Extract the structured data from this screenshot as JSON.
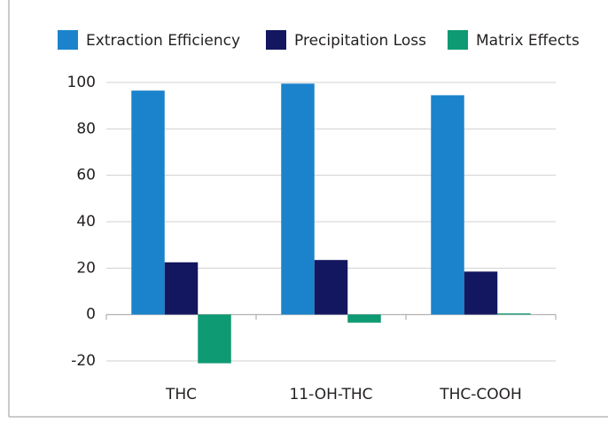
{
  "chart_data": {
    "type": "bar",
    "categories": [
      "THC",
      "11-OH-THC",
      "THC-COOH"
    ],
    "series": [
      {
        "name": "Extraction Efficiency",
        "color": "#1b83cb",
        "values": [
          96.5,
          99.5,
          94.5
        ]
      },
      {
        "name": "Precipitation Loss",
        "color": "#13175f",
        "values": [
          22.5,
          23.5,
          18.5
        ]
      },
      {
        "name": "Matrix Effects",
        "color": "#0e9a72",
        "values": [
          -21,
          -3.5,
          0.5
        ]
      }
    ],
    "ylim": [
      -20,
      100
    ],
    "yticks": [
      -20,
      0,
      20,
      40,
      60,
      80,
      100
    ],
    "grid": true,
    "legend": "top"
  }
}
